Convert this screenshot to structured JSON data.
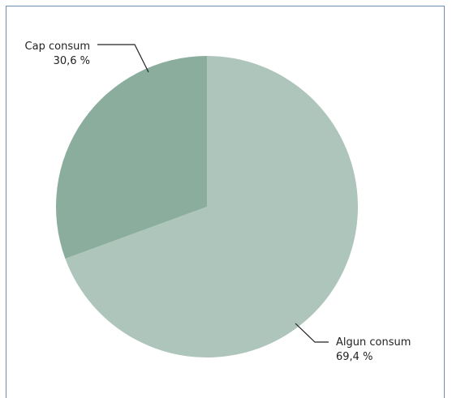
{
  "chart_data": {
    "type": "pie",
    "title": "",
    "slices": [
      {
        "label": "Algun consum",
        "value": 69.4,
        "value_label": "69,4 %",
        "color": "#adc5ba"
      },
      {
        "label": "Cap consum",
        "value": 30.6,
        "value_label": "30,6 %",
        "color": "#8aad9e"
      }
    ],
    "legend": "none",
    "border_color": "#6d8fb3"
  }
}
